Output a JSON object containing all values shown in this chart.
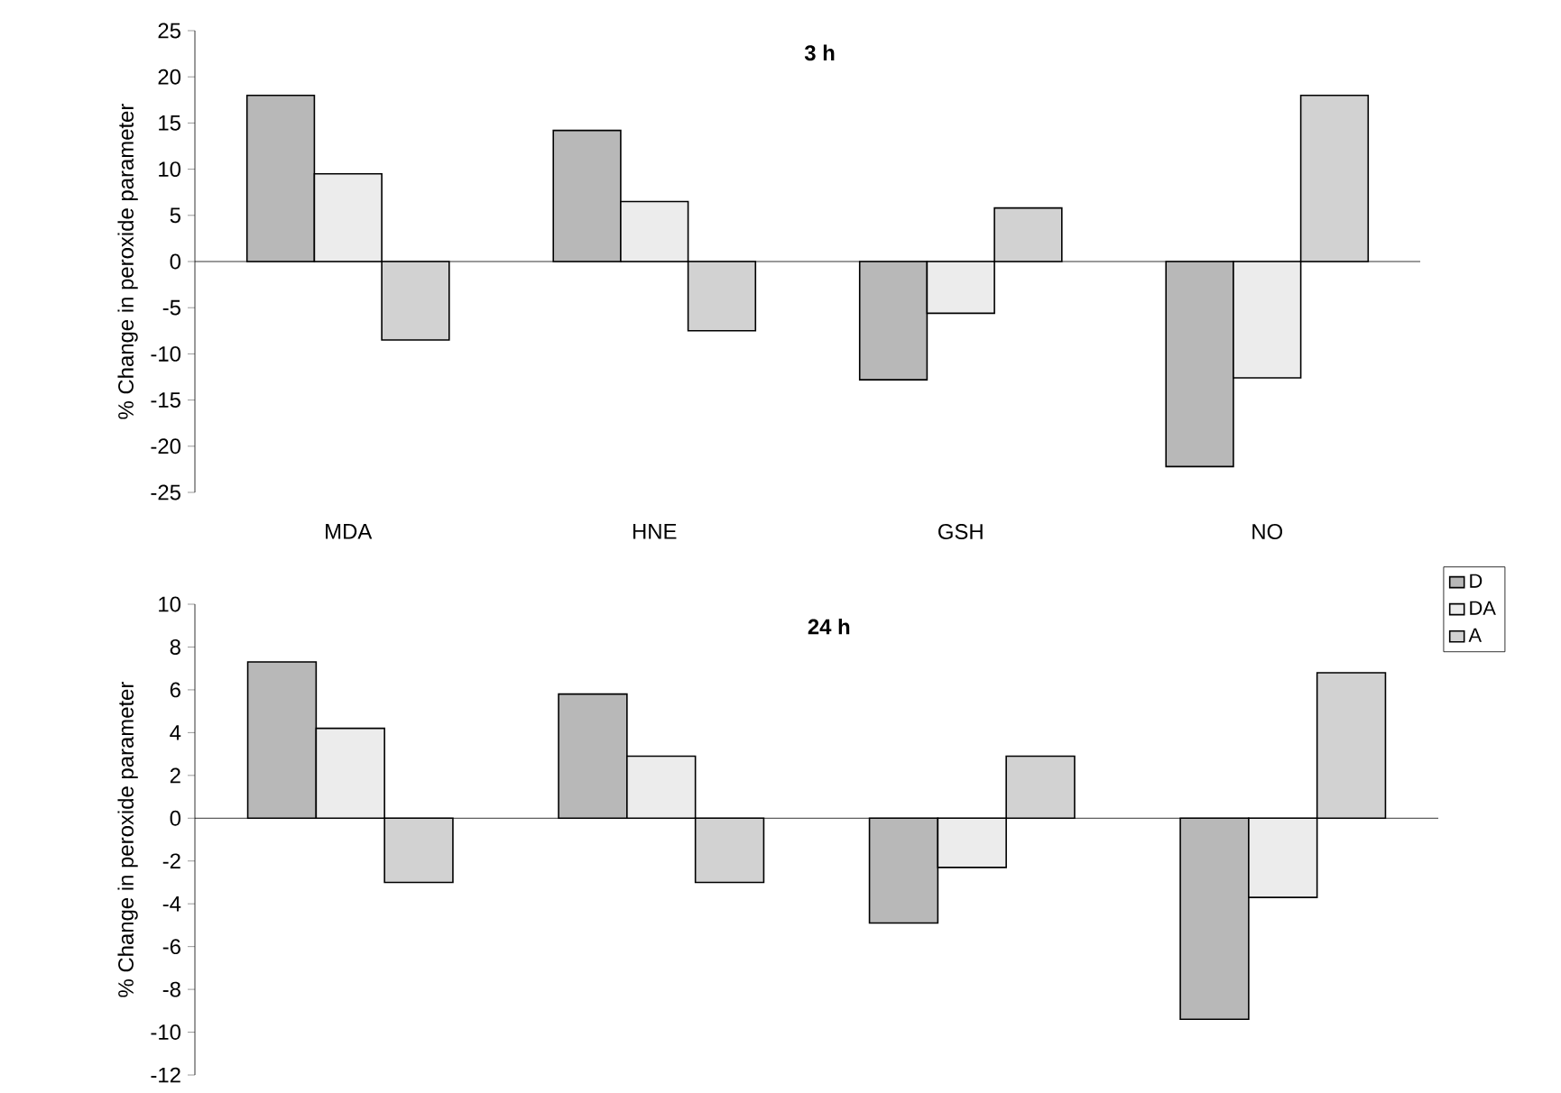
{
  "chart_data": [
    {
      "type": "bar",
      "title": "3 h",
      "ylabel": "% Change in peroxide parameter",
      "categories": [
        "MDA",
        "HNE",
        "GSH",
        "NO"
      ],
      "ylim": [
        -25,
        25
      ],
      "yticks": [
        -25,
        -20,
        -15,
        -10,
        -5,
        0,
        5,
        10,
        15,
        20,
        25
      ],
      "series": [
        {
          "color": "#b8b8b8",
          "values": [
            18,
            14.2,
            -12.8,
            -22.2
          ]
        },
        {
          "color": "#ececec",
          "values": [
            9.5,
            6.5,
            -5.6,
            -12.6
          ]
        },
        {
          "color": "#d2d2d2",
          "values": [
            -8.5,
            -7.5,
            5.8,
            18
          ]
        }
      ]
    },
    {
      "type": "bar",
      "title": "24 h",
      "ylabel": "% Change in peroxide parameter",
      "categories": [
        null,
        null,
        null,
        null
      ],
      "ylim": [
        -12,
        10
      ],
      "yticks": [
        -12,
        -10,
        -8,
        -6,
        -4,
        -2,
        0,
        2,
        4,
        6,
        8,
        10
      ],
      "tick_labels": "y",
      "legend": "top right",
      "series": [
        {
          "name": "D",
          "color": "#b8b8b8",
          "values": [
            7.3,
            5.8,
            -4.9,
            -9.4
          ]
        },
        {
          "name": "DA",
          "color": "#ececec",
          "values": [
            4.2,
            2.9,
            -2.3,
            -3.7
          ]
        },
        {
          "name": "A",
          "color": "#d2d2d2",
          "values": [
            -3,
            -3,
            2.9,
            6.8
          ]
        }
      ]
    }
  ]
}
